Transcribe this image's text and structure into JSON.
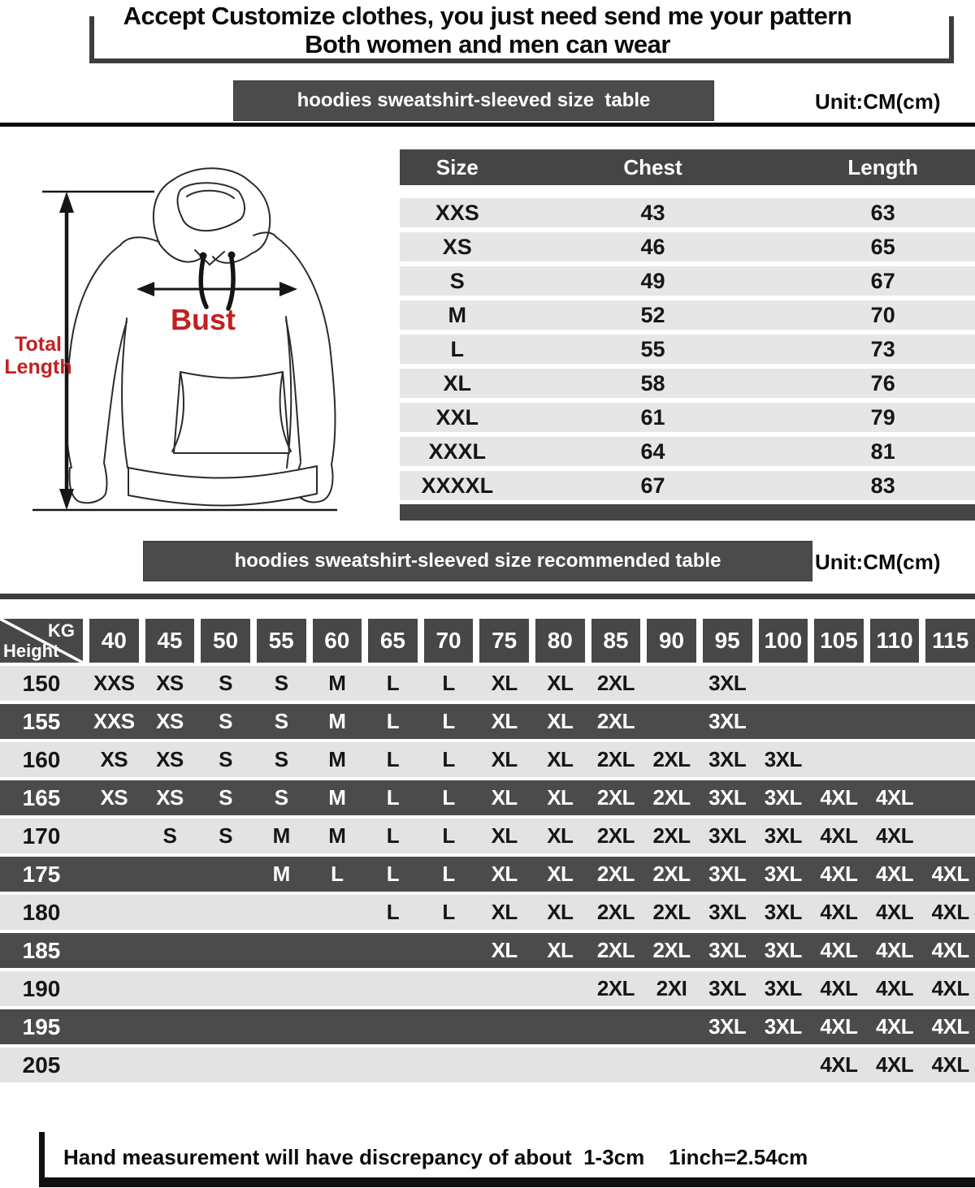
{
  "header": {
    "line1": "Accept Customize clothes, you just need send me your pattern",
    "line2": "Both women and men can wear"
  },
  "size_table_section": {
    "banner_title": "hoodies sweatshirt-sleeved size  table",
    "unit_label": "Unit:CM(cm)",
    "diagram": {
      "bust_label": "Bust",
      "total_length_line1": "Total",
      "total_length_line2": "Length"
    },
    "table": {
      "columns": [
        "Size",
        "Chest",
        "Length"
      ],
      "rows": [
        {
          "size": "XXS",
          "chest": "43",
          "length": "63"
        },
        {
          "size": "XS",
          "chest": "46",
          "length": "65"
        },
        {
          "size": "S",
          "chest": "49",
          "length": "67"
        },
        {
          "size": "M",
          "chest": "52",
          "length": "70"
        },
        {
          "size": "L",
          "chest": "55",
          "length": "73"
        },
        {
          "size": "XL",
          "chest": "58",
          "length": "76"
        },
        {
          "size": "XXL",
          "chest": "61",
          "length": "79"
        },
        {
          "size": "XXXL",
          "chest": "64",
          "length": "81"
        },
        {
          "size": "XXXXL",
          "chest": "67",
          "length": "83"
        }
      ]
    }
  },
  "recommend_section": {
    "banner_title": "hoodies sweatshirt-sleeved size recommended table",
    "unit_label": "Unit:CM(cm)",
    "corner": {
      "top_right": "KG",
      "bottom_left": "Height"
    },
    "weight_columns": [
      "40",
      "45",
      "50",
      "55",
      "60",
      "65",
      "70",
      "75",
      "80",
      "85",
      "90",
      "95",
      "100",
      "105",
      "110",
      "115"
    ],
    "rows": [
      {
        "height": "150",
        "sizes": [
          "XXS",
          "XS",
          "S",
          "S",
          "M",
          "L",
          "L",
          "XL",
          "XL",
          "2XL",
          "",
          "3XL",
          "",
          "",
          "",
          ""
        ]
      },
      {
        "height": "155",
        "sizes": [
          "XXS",
          "XS",
          "S",
          "S",
          "M",
          "L",
          "L",
          "XL",
          "XL",
          "2XL",
          "",
          "3XL",
          "",
          "",
          "",
          ""
        ]
      },
      {
        "height": "160",
        "sizes": [
          "XS",
          "XS",
          "S",
          "S",
          "M",
          "L",
          "L",
          "XL",
          "XL",
          "2XL",
          "2XL",
          "3XL",
          "3XL",
          "",
          "",
          ""
        ]
      },
      {
        "height": "165",
        "sizes": [
          "XS",
          "XS",
          "S",
          "S",
          "M",
          "L",
          "L",
          "XL",
          "XL",
          "2XL",
          "2XL",
          "3XL",
          "3XL",
          "4XL",
          "4XL",
          ""
        ]
      },
      {
        "height": "170",
        "sizes": [
          "",
          "S",
          "S",
          "M",
          "M",
          "L",
          "L",
          "XL",
          "XL",
          "2XL",
          "2XL",
          "3XL",
          "3XL",
          "4XL",
          "4XL",
          ""
        ]
      },
      {
        "height": "175",
        "sizes": [
          "",
          "",
          "",
          "M",
          "L",
          "L",
          "L",
          "XL",
          "XL",
          "2XL",
          "2XL",
          "3XL",
          "3XL",
          "4XL",
          "4XL",
          "4XL"
        ]
      },
      {
        "height": "180",
        "sizes": [
          "",
          "",
          "",
          "",
          "",
          "L",
          "L",
          "XL",
          "XL",
          "2XL",
          "2XL",
          "3XL",
          "3XL",
          "4XL",
          "4XL",
          "4XL"
        ]
      },
      {
        "height": "185",
        "sizes": [
          "",
          "",
          "",
          "",
          "",
          "",
          "",
          "XL",
          "XL",
          "2XL",
          "2XL",
          "3XL",
          "3XL",
          "4XL",
          "4XL",
          "4XL"
        ]
      },
      {
        "height": "190",
        "sizes": [
          "",
          "",
          "",
          "",
          "",
          "",
          "",
          "",
          "",
          "2XL",
          "2XI",
          "3XL",
          "3XL",
          "4XL",
          "4XL",
          "4XL"
        ]
      },
      {
        "height": "195",
        "sizes": [
          "",
          "",
          "",
          "",
          "",
          "",
          "",
          "",
          "",
          "",
          "",
          "3XL",
          "3XL",
          "4XL",
          "4XL",
          "4XL"
        ]
      },
      {
        "height": "205",
        "sizes": [
          "",
          "",
          "",
          "",
          "",
          "",
          "",
          "",
          "",
          "",
          "",
          "",
          "",
          "4XL",
          "4XL",
          "4XL"
        ]
      }
    ]
  },
  "footer": {
    "note": "Hand measurement will have discrepancy of about  1-3cm",
    "conversion": "1inch=2.54cm"
  },
  "colors": {
    "dark": "#474747",
    "light_row": "#e3e3e3",
    "accent_red": "#c22020"
  }
}
